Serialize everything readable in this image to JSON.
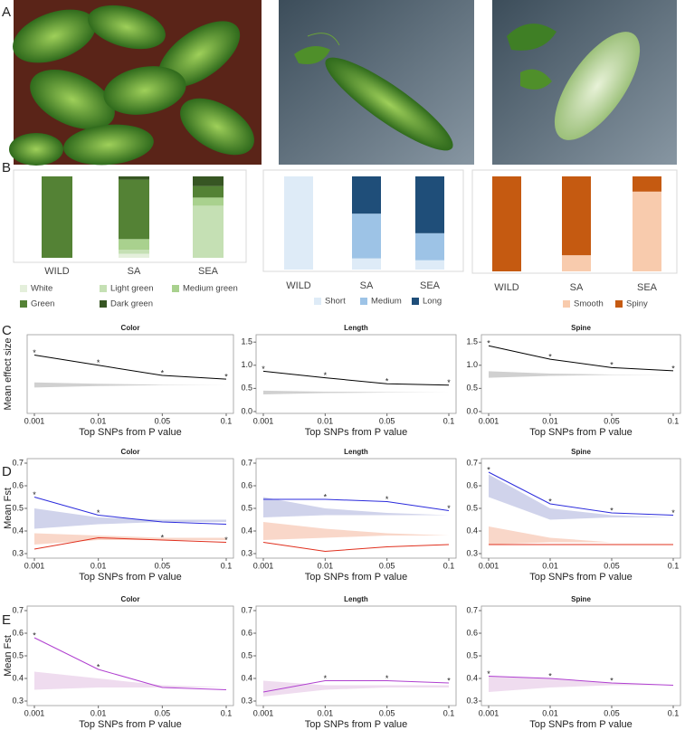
{
  "panel_labels": [
    "A",
    "B",
    "C",
    "D",
    "E"
  ],
  "chart_data": [
    {
      "type": "bar",
      "stacked": true,
      "categories": [
        "WILD",
        "SA",
        "SEA"
      ],
      "ylim": [
        0,
        100
      ],
      "series": [
        {
          "name": "White",
          "color": "#e4efdb",
          "values": [
            0,
            5,
            0
          ]
        },
        {
          "name": "Light green",
          "color": "#c5e0b4",
          "values": [
            0,
            5,
            64
          ]
        },
        {
          "name": "Medium green",
          "color": "#a9d18e",
          "values": [
            0,
            13,
            10
          ]
        },
        {
          "name": "Green",
          "color": "#548235",
          "values": [
            100,
            73,
            14
          ]
        },
        {
          "name": "Dark green",
          "color": "#375623",
          "values": [
            0,
            4,
            12
          ]
        }
      ]
    },
    {
      "type": "bar",
      "stacked": true,
      "categories": [
        "WILD",
        "SA",
        "SEA"
      ],
      "ylim": [
        0,
        100
      ],
      "series": [
        {
          "name": "Short",
          "color": "#deebf7",
          "values": [
            100,
            12,
            10
          ]
        },
        {
          "name": "Medium",
          "color": "#9dc3e6",
          "values": [
            0,
            48,
            29
          ]
        },
        {
          "name": "Long",
          "color": "#1f4e79",
          "values": [
            0,
            40,
            61
          ]
        }
      ]
    },
    {
      "type": "bar",
      "stacked": true,
      "categories": [
        "WILD",
        "SA",
        "SEA"
      ],
      "ylim": [
        0,
        100
      ],
      "series": [
        {
          "name": "Smooth",
          "color": "#f8cbad",
          "values": [
            0,
            17,
            84
          ]
        },
        {
          "name": "Spiny",
          "color": "#c55a11",
          "values": [
            100,
            83,
            16
          ]
        }
      ]
    },
    {
      "type": "line",
      "title": "Color",
      "x_label": "Top SNPs from P value",
      "y_label": "Mean effect size",
      "categories": [
        "0.001",
        "0.01",
        "0.05",
        "0.1"
      ],
      "ylim": [
        -0.04,
        1.66
      ],
      "series": [
        {
          "color": "#000000",
          "values": [
            1.22,
            1.0,
            0.78,
            0.7
          ],
          "stars": [
            "*",
            "*",
            "*",
            "*"
          ]
        }
      ],
      "bands": [
        {
          "color": "#c8c8c8",
          "upper": [
            0.63,
            0.6,
            0.58,
            0.58
          ],
          "lower": [
            0.52,
            0.55,
            0.57,
            0.58
          ]
        }
      ]
    },
    {
      "type": "line",
      "title": "Length",
      "x_label": "Top SNPs from P value",
      "categories": [
        "0.001",
        "0.01",
        "0.05",
        "0.1"
      ],
      "ylim": [
        -0.04,
        1.66
      ],
      "yticks": [
        {
          "value": 0,
          "label": "0.0"
        },
        0.5,
        {
          "value": 1,
          "label": "1.0"
        },
        1.5
      ],
      "series": [
        {
          "color": "#000000",
          "values": [
            0.87,
            0.73,
            0.6,
            0.57
          ],
          "stars": [
            "*",
            "*",
            "*",
            "*"
          ]
        }
      ],
      "bands": [
        {
          "color": "#c8c8c8",
          "upper": [
            0.45,
            0.43,
            0.42,
            0.42
          ],
          "lower": [
            0.37,
            0.4,
            0.41,
            0.42
          ]
        }
      ]
    },
    {
      "type": "line",
      "title": "Spine",
      "x_label": "Top SNPs from P value",
      "categories": [
        "0.001",
        "0.01",
        "0.05",
        "0.1"
      ],
      "ylim": [
        -0.04,
        1.66
      ],
      "yticks": [
        {
          "value": 0,
          "label": "0.0"
        },
        0.5,
        {
          "value": 1,
          "label": "1.0"
        },
        1.5
      ],
      "series": [
        {
          "color": "#000000",
          "values": [
            1.42,
            1.13,
            0.95,
            0.88
          ],
          "stars": [
            "*",
            "*",
            "*",
            "*"
          ]
        }
      ],
      "bands": [
        {
          "color": "#c8c8c8",
          "upper": [
            0.87,
            0.82,
            0.8,
            0.8
          ],
          "lower": [
            0.73,
            0.77,
            0.79,
            0.8
          ]
        }
      ]
    },
    {
      "type": "line",
      "title": "Color",
      "x_label": "Top SNPs from P value",
      "y_label": "Mean Fst",
      "categories": [
        "0.001",
        "0.01",
        "0.05",
        "0.1"
      ],
      "ylim": [
        0.28,
        0.72
      ],
      "yticks": [
        0.3,
        0.4,
        0.5,
        0.6,
        0.7
      ],
      "series": [
        {
          "color": "#2b2bdc",
          "values": [
            0.55,
            0.47,
            0.44,
            0.43
          ],
          "stars": [
            "*",
            "*",
            null,
            null
          ]
        },
        {
          "color": "#e0301e",
          "values": [
            0.32,
            0.37,
            0.36,
            0.35
          ],
          "stars": [
            null,
            null,
            "*",
            "*"
          ]
        }
      ],
      "bands": [
        {
          "color": "#c8cbe8",
          "upper": [
            0.5,
            0.46,
            0.45,
            0.45
          ],
          "lower": [
            0.41,
            0.43,
            0.44,
            0.44
          ]
        },
        {
          "color": "#f8d0c0",
          "upper": [
            0.39,
            0.38,
            0.37,
            0.37
          ],
          "lower": [
            0.34,
            0.36,
            0.36,
            0.36
          ]
        }
      ]
    },
    {
      "type": "line",
      "title": "Length",
      "x_label": "Top SNPs from P value",
      "categories": [
        "0.001",
        "0.01",
        "0.05",
        "0.1"
      ],
      "ylim": [
        0.28,
        0.72
      ],
      "yticks": [
        0.3,
        0.4,
        0.5,
        0.6,
        0.7
      ],
      "series": [
        {
          "color": "#2b2bdc",
          "values": [
            0.54,
            0.54,
            0.53,
            0.49
          ],
          "stars": [
            null,
            "*",
            "*",
            "*"
          ]
        },
        {
          "color": "#e0301e",
          "values": [
            0.35,
            0.31,
            0.33,
            0.34
          ]
        }
      ],
      "bands": [
        {
          "color": "#c8cbe8",
          "upper": [
            0.55,
            0.5,
            0.48,
            0.47
          ],
          "lower": [
            0.46,
            0.47,
            0.47,
            0.47
          ]
        },
        {
          "color": "#f8d0c0",
          "upper": [
            0.44,
            0.41,
            0.39,
            0.38
          ],
          "lower": [
            0.36,
            0.37,
            0.38,
            0.38
          ]
        }
      ]
    },
    {
      "type": "line",
      "title": "Spine",
      "x_label": "Top SNPs from P value",
      "categories": [
        "0.001",
        "0.01",
        "0.05",
        "0.1"
      ],
      "ylim": [
        0.28,
        0.72
      ],
      "yticks": [
        0.3,
        0.4,
        0.5,
        0.6,
        0.7
      ],
      "series": [
        {
          "color": "#2b2bdc",
          "values": [
            0.66,
            0.52,
            0.48,
            0.47
          ],
          "stars": [
            "*",
            "*",
            "*",
            "*"
          ]
        },
        {
          "color": "#e0301e",
          "values": [
            0.34,
            0.34,
            0.34,
            0.34
          ]
        }
      ],
      "bands": [
        {
          "color": "#c8cbe8",
          "upper": [
            0.65,
            0.5,
            0.47,
            0.46
          ],
          "lower": [
            0.55,
            0.45,
            0.46,
            0.46
          ]
        },
        {
          "color": "#f8d0c0",
          "upper": [
            0.42,
            0.37,
            0.35,
            0.35
          ],
          "lower": [
            0.34,
            0.35,
            0.35,
            0.35
          ]
        }
      ]
    },
    {
      "type": "line",
      "title": "Color",
      "x_label": "Top SNPs from P value",
      "y_label": "Mean Fst",
      "categories": [
        "0.001",
        "0.01",
        "0.05",
        "0.1"
      ],
      "ylim": [
        0.28,
        0.72
      ],
      "yticks": [
        0.3,
        0.4,
        0.5,
        0.6,
        0.7
      ],
      "series": [
        {
          "color": "#b040d0",
          "values": [
            0.58,
            0.44,
            0.36,
            0.35
          ],
          "stars": [
            "*",
            "*",
            null,
            null
          ]
        }
      ],
      "bands": [
        {
          "color": "#ecd6ec",
          "upper": [
            0.43,
            0.4,
            0.37,
            0.36
          ],
          "lower": [
            0.35,
            0.36,
            0.36,
            0.36
          ]
        }
      ]
    },
    {
      "type": "line",
      "title": "Length",
      "x_label": "Top SNPs from P value",
      "categories": [
        "0.001",
        "0.01",
        "0.05",
        "0.1"
      ],
      "ylim": [
        0.28,
        0.72
      ],
      "yticks": [
        0.3,
        0.4,
        0.5,
        0.6,
        0.7
      ],
      "series": [
        {
          "color": "#b040d0",
          "values": [
            0.34,
            0.39,
            0.39,
            0.38
          ],
          "stars": [
            null,
            "*",
            "*",
            "*"
          ]
        }
      ],
      "bands": [
        {
          "color": "#ecd6ec",
          "upper": [
            0.39,
            0.37,
            0.37,
            0.37
          ],
          "lower": [
            0.32,
            0.35,
            0.36,
            0.36
          ]
        }
      ]
    },
    {
      "type": "line",
      "title": "Spine",
      "x_label": "Top SNPs from P value",
      "categories": [
        "0.001",
        "0.01",
        "0.05",
        "0.1"
      ],
      "ylim": [
        0.28,
        0.72
      ],
      "yticks": [
        0.3,
        0.4,
        0.5,
        0.6,
        0.7
      ],
      "series": [
        {
          "color": "#b040d0",
          "values": [
            0.41,
            0.4,
            0.38,
            0.37
          ],
          "stars": [
            "*",
            "*",
            "*",
            null
          ]
        }
      ],
      "bands": [
        {
          "color": "#ecd6ec",
          "upper": [
            0.41,
            0.4,
            0.38,
            0.37
          ],
          "lower": [
            0.34,
            0.36,
            0.37,
            0.37
          ]
        }
      ]
    }
  ]
}
